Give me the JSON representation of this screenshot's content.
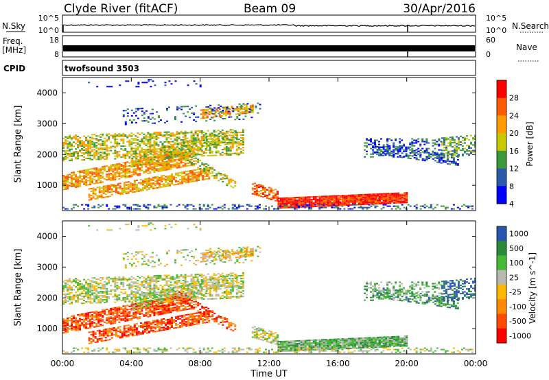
{
  "header": {
    "station": "Clyde River (fitACF)",
    "beam": "Beam 09",
    "date": "30/Apr/2016"
  },
  "strips": {
    "nsky": {
      "label": "N.Sky",
      "ticks_left": [
        "10^5",
        "10^0"
      ],
      "ticks_right": [
        "10^5",
        "10^0"
      ],
      "right_label": "N.Search"
    },
    "freq": {
      "label_line1": "Freq.",
      "label_line2": "[MHz]",
      "ticks_left": [
        "18",
        "8"
      ],
      "ticks_right": [
        "60",
        "0"
      ],
      "right_label": "Nave"
    },
    "cpid": {
      "label": "CPID",
      "value": "twofsound 3503"
    }
  },
  "chart_data": [
    {
      "type": "heatmap",
      "title": "",
      "quantity": "Power",
      "colorbar_label": "Power [dB]",
      "colorbar_ticks": [
        "28",
        "24",
        "20",
        "16",
        "12",
        "8",
        "4"
      ],
      "colorbar_colors": [
        "#ff0000",
        "#ff5a00",
        "#ff9a00",
        "#c8c800",
        "#3a9a3a",
        "#2a5aaa",
        "#0000ff"
      ],
      "xlabel": "",
      "ylabel": "Slant Range [km]",
      "yticks": [
        "4000",
        "3000",
        "2000",
        "1000"
      ],
      "ylim": [
        180,
        4500
      ],
      "xlim_hours": [
        0,
        24
      ]
    },
    {
      "type": "heatmap",
      "title": "",
      "quantity": "Velocity",
      "colorbar_label": "Velocity [m s^-1]",
      "colorbar_ticks": [
        "1000",
        "500",
        "100",
        "25",
        "-25",
        "-100",
        "-500",
        "-1000"
      ],
      "colorbar_colors": [
        "#2a55b0",
        "#2a8a3a",
        "#44bb33",
        "#b8b8b0",
        "#ffb800",
        "#ff8a00",
        "#ff4a00",
        "#ff0000"
      ],
      "xlabel": "Time UT",
      "ylabel": "Slant Range [km]",
      "yticks": [
        "4000",
        "3000",
        "2000",
        "1000"
      ],
      "xticks": [
        "00:00",
        "04:00",
        "08:00",
        "12:00",
        "16:00",
        "20:00",
        "00:00"
      ],
      "ylim": [
        180,
        4500
      ],
      "xlim_hours": [
        0,
        24
      ]
    }
  ]
}
